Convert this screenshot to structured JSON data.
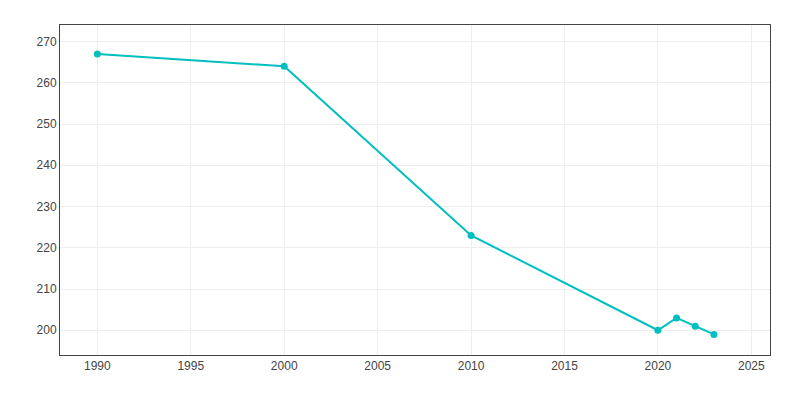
{
  "chart_data": {
    "type": "line",
    "x": [
      1990,
      2000,
      2010,
      2020,
      2021,
      2022,
      2023
    ],
    "values": [
      267,
      264,
      223,
      200,
      203,
      201,
      199
    ],
    "color": "#00BFBF",
    "marker": "circle",
    "xlim": [
      1988,
      2026
    ],
    "ylim": [
      194,
      274
    ],
    "xticks": [
      1990,
      1995,
      2000,
      2005,
      2010,
      2015,
      2020,
      2025
    ],
    "yticks": [
      200,
      210,
      220,
      230,
      240,
      250,
      260,
      270
    ],
    "grid": true
  }
}
